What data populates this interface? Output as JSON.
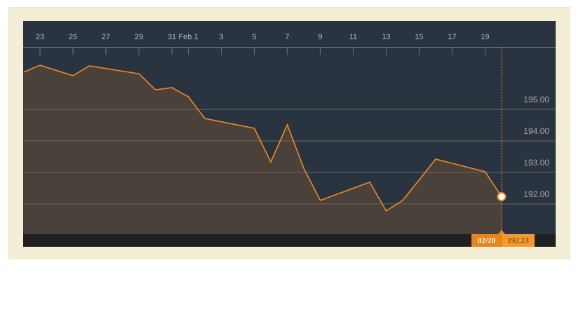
{
  "chart_data": {
    "type": "line",
    "x": [
      0,
      1,
      3,
      4,
      7,
      8,
      9,
      10,
      11,
      14,
      15,
      16,
      17,
      18,
      21,
      22,
      23,
      24,
      25,
      28,
      29
    ],
    "series": [
      {
        "color": "#f0891f",
        "values": [
          196.18,
          196.4,
          196.07,
          196.38,
          196.13,
          195.62,
          195.69,
          195.4,
          194.71,
          194.4,
          193.33,
          194.51,
          193.13,
          192.11,
          192.69,
          191.78,
          192.11,
          192.76,
          193.42,
          193.02,
          192.23
        ]
      }
    ],
    "xlim": [
      0,
      32.28
    ],
    "xticks": [
      {
        "value": 1,
        "label": "23"
      },
      {
        "value": 3,
        "label": "25"
      },
      {
        "value": 5,
        "label": "27"
      },
      {
        "value": 7,
        "label": "29"
      },
      {
        "value": 9,
        "label": "31"
      },
      {
        "value": 10,
        "label": "Feb 1"
      },
      {
        "value": 12,
        "label": "3"
      },
      {
        "value": 14,
        "label": "5"
      },
      {
        "value": 16,
        "label": "7"
      },
      {
        "value": 18,
        "label": "9"
      },
      {
        "value": 20,
        "label": "11"
      },
      {
        "value": 22,
        "label": "13"
      },
      {
        "value": 24,
        "label": "15"
      },
      {
        "value": 26,
        "label": "17"
      },
      {
        "value": 28,
        "label": "19"
      }
    ],
    "ylim": [
      191.04,
      196.98
    ],
    "yticks": [
      {
        "value": 192,
        "label": "192.00"
      },
      {
        "value": 193,
        "label": "193.00"
      },
      {
        "value": 194,
        "label": "194.00"
      },
      {
        "value": 195,
        "label": "195.00"
      }
    ],
    "grid": true,
    "crosshair_label": "02/20"
  }
}
